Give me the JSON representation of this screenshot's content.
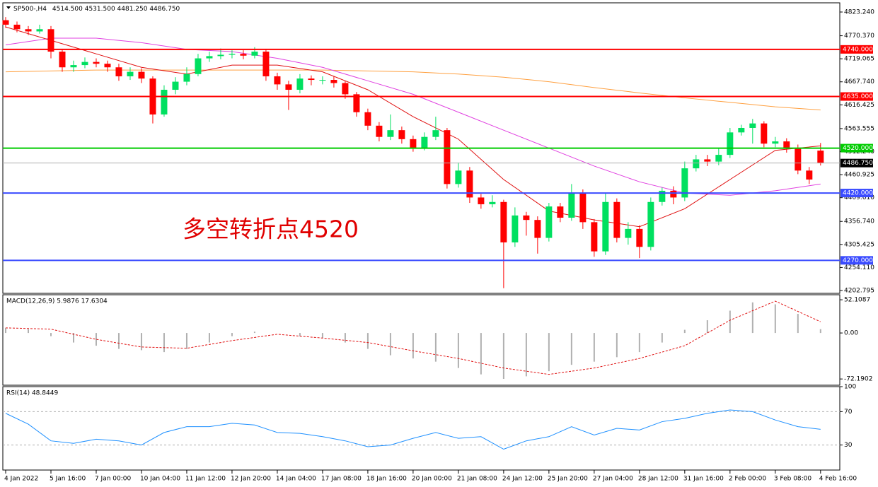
{
  "chart_data": [
    {
      "type": "candlestick",
      "title": "SP500-,H4",
      "ohlc_label": "4514.500 4531.500 4481.250 4486.750",
      "annotation": "多空转折点4520",
      "xlim": [
        -0.25,
        73.7
      ],
      "ylim": [
        4196.5,
        4843.7
      ],
      "xticks": [
        {
          "value": 0,
          "label": "4 Jan 2022"
        },
        {
          "value": 4,
          "label": "5 Jan 16:00"
        },
        {
          "value": 8,
          "label": "7 Jan 00:00"
        },
        {
          "value": 12,
          "label": "10 Jan 04:00"
        },
        {
          "value": 16,
          "label": "11 Jan 12:00"
        },
        {
          "value": 20,
          "label": "12 Jan 20:00"
        },
        {
          "value": 24,
          "label": "14 Jan 04:00"
        },
        {
          "value": 28,
          "label": "17 Jan 08:00"
        },
        {
          "value": 32,
          "label": "18 Jan 16:00"
        },
        {
          "value": 36,
          "label": "20 Jan 00:00"
        },
        {
          "value": 40,
          "label": "21 Jan 08:00"
        },
        {
          "value": 44,
          "label": "24 Jan 12:00"
        },
        {
          "value": 48,
          "label": "25 Jan 20:00"
        },
        {
          "value": 52,
          "label": "27 Jan 04:00"
        },
        {
          "value": 56,
          "label": "28 Jan 12:00"
        },
        {
          "value": 60,
          "label": "31 Jan 16:00"
        },
        {
          "value": 64,
          "label": "2 Feb 00:00"
        },
        {
          "value": 68,
          "label": "3 Feb 08:00"
        },
        {
          "value": 72,
          "label": "4 Feb 16:00"
        }
      ],
      "yticks": [
        {
          "value": 4823.24,
          "label": "4823.240"
        },
        {
          "value": 4770.37,
          "label": "4770.370"
        },
        {
          "value": 4719.065,
          "label": "4719.065"
        },
        {
          "value": 4667.74,
          "label": "4667.740"
        },
        {
          "value": 4616.425,
          "label": "4616.425"
        },
        {
          "value": 4563.555,
          "label": "4563.555"
        },
        {
          "value": 4512.24,
          "label": "4512.240"
        },
        {
          "value": 4460.925,
          "label": "4460.925"
        },
        {
          "value": 4409.61,
          "label": "4409.610"
        },
        {
          "value": 4356.74,
          "label": "4356.740"
        },
        {
          "value": 4305.425,
          "label": "4305.425"
        },
        {
          "value": 4254.11,
          "label": "4254.110"
        },
        {
          "value": 4202.795,
          "label": "4202.795"
        }
      ],
      "levels": [
        {
          "value": 4740,
          "label": "4740.000",
          "color": "#ff0000"
        },
        {
          "value": 4635,
          "label": "4635.000",
          "color": "#ff0000"
        },
        {
          "value": 4520,
          "label": "4520.000",
          "color": "#00cc00"
        },
        {
          "value": 4420,
          "label": "4420.000",
          "color": "#3a4bff"
        },
        {
          "value": 4270,
          "label": "4270.000",
          "color": "#3a4bff"
        }
      ],
      "last_price": {
        "value": 4486.75,
        "label": "4486.750"
      },
      "bull_color": "#00e060",
      "bear_color": "#ff0000",
      "open": [
        4805,
        4795,
        4785,
        4780,
        4785,
        4735,
        4700,
        4705,
        4712,
        4708,
        4700,
        4680,
        4690,
        4675,
        4595,
        4650,
        4668,
        4685,
        4720,
        4725,
        4728,
        4730,
        4726,
        4735,
        4680,
        4662,
        4650,
        4675,
        4672,
        4672,
        4665,
        4640,
        4600,
        4570,
        4545,
        4560,
        4540,
        4520,
        4545,
        4560,
        4440,
        4470,
        4410,
        4395,
        4400,
        4310,
        4370,
        4360,
        4320,
        4390,
        4365,
        4420,
        4355,
        4290,
        4400,
        4320,
        4340,
        4300,
        4400,
        4425,
        4410,
        4475,
        4495,
        4490,
        4505,
        4555,
        4565,
        4575,
        4530,
        4535,
        4520,
        4470,
        4514.5
      ],
      "high": [
        4812,
        4802,
        4792,
        4795,
        4792,
        4740,
        4715,
        4722,
        4720,
        4715,
        4708,
        4700,
        4698,
        4680,
        4660,
        4678,
        4700,
        4730,
        4735,
        4742,
        4738,
        4738,
        4745,
        4740,
        4688,
        4670,
        4685,
        4682,
        4680,
        4680,
        4670,
        4645,
        4608,
        4578,
        4595,
        4568,
        4548,
        4555,
        4590,
        4565,
        4488,
        4478,
        4418,
        4415,
        4405,
        4388,
        4378,
        4368,
        4398,
        4398,
        4440,
        4428,
        4362,
        4420,
        4408,
        4355,
        4348,
        4410,
        4432,
        4435,
        4490,
        4505,
        4505,
        4520,
        4565,
        4572,
        4585,
        4580,
        4545,
        4542,
        4528,
        4478,
        4531.5
      ],
      "low": [
        4788,
        4778,
        4772,
        4775,
        4720,
        4690,
        4690,
        4698,
        4700,
        4690,
        4670,
        4672,
        4665,
        4575,
        4590,
        4640,
        4660,
        4680,
        4712,
        4718,
        4720,
        4718,
        4720,
        4670,
        4650,
        4605,
        4642,
        4660,
        4662,
        4655,
        4630,
        4590,
        4560,
        4535,
        4538,
        4530,
        4512,
        4515,
        4538,
        4430,
        4432,
        4398,
        4385,
        4388,
        4208,
        4300,
        4325,
        4285,
        4312,
        4355,
        4358,
        4340,
        4278,
        4282,
        4310,
        4305,
        4275,
        4292,
        4392,
        4395,
        4402,
        4468,
        4480,
        4482,
        4498,
        4548,
        4530,
        4522,
        4522,
        4510,
        4462,
        4440,
        4481.25
      ],
      "close": [
        4795,
        4785,
        4780,
        4785,
        4735,
        4700,
        4705,
        4712,
        4708,
        4700,
        4680,
        4690,
        4675,
        4595,
        4650,
        4668,
        4685,
        4720,
        4725,
        4728,
        4730,
        4726,
        4735,
        4680,
        4662,
        4650,
        4675,
        4672,
        4672,
        4665,
        4640,
        4600,
        4570,
        4545,
        4560,
        4540,
        4520,
        4545,
        4560,
        4440,
        4470,
        4410,
        4395,
        4400,
        4310,
        4370,
        4360,
        4320,
        4390,
        4365,
        4420,
        4355,
        4290,
        4400,
        4320,
        4340,
        4300,
        4400,
        4425,
        4410,
        4475,
        4495,
        4490,
        4505,
        4555,
        4565,
        4575,
        4530,
        4535,
        4520,
        4470,
        4450,
        4486.75
      ],
      "lines": [
        {
          "color": "#ffa040",
          "x": [
            0,
            4,
            8,
            12,
            16,
            20,
            24,
            28,
            32,
            36,
            40,
            44,
            48,
            52,
            56,
            60,
            64,
            68,
            72
          ],
          "values": [
            4690,
            4692,
            4694,
            4694,
            4694,
            4694,
            4694,
            4694,
            4692,
            4690,
            4685,
            4678,
            4668,
            4655,
            4643,
            4632,
            4622,
            4612,
            4605
          ]
        },
        {
          "color": "#e040e0",
          "x": [
            0,
            4,
            8,
            12,
            16,
            20,
            24,
            28,
            32,
            36,
            40,
            44,
            48,
            52,
            56,
            60,
            64,
            68,
            72
          ],
          "values": [
            4750,
            4765,
            4765,
            4755,
            4740,
            4735,
            4720,
            4700,
            4670,
            4640,
            4600,
            4560,
            4520,
            4480,
            4445,
            4420,
            4415,
            4425,
            4440
          ]
        },
        {
          "color": "#e01010",
          "x": [
            0,
            4,
            8,
            12,
            16,
            20,
            24,
            28,
            32,
            36,
            40,
            44,
            48,
            52,
            56,
            60,
            64,
            68,
            72
          ],
          "values": [
            4790,
            4760,
            4730,
            4700,
            4685,
            4705,
            4705,
            4690,
            4650,
            4590,
            4540,
            4450,
            4380,
            4360,
            4345,
            4385,
            4450,
            4515,
            4525
          ]
        }
      ]
    },
    {
      "type": "macd",
      "title": "MACD(12,26,9) 5.9876 17.6304",
      "xlim": [
        -0.25,
        73.7
      ],
      "ylim": [
        -82,
        60
      ],
      "yticks": [
        52.1087,
        {
          "value": 0,
          "label": "0.00"
        },
        -72.1902
      ],
      "hist_color": "#b0b0b0",
      "signal_color": "#e01010",
      "x": [
        0,
        2,
        4,
        6,
        8,
        10,
        12,
        14,
        16,
        18,
        20,
        22,
        24,
        26,
        28,
        30,
        32,
        34,
        36,
        38,
        40,
        42,
        44,
        46,
        48,
        50,
        52,
        54,
        56,
        58,
        60,
        62,
        64,
        66,
        68,
        70,
        72
      ],
      "histogram": [
        8,
        6,
        -5,
        -15,
        -20,
        -25,
        -27,
        -30,
        -25,
        -15,
        -5,
        2,
        0,
        -5,
        -8,
        -15,
        -25,
        -35,
        -40,
        -45,
        -55,
        -65,
        -72,
        -68,
        -60,
        -50,
        -45,
        -38,
        -30,
        -15,
        5,
        20,
        35,
        48,
        45,
        30,
        5.9876
      ],
      "signal_x": [
        0,
        4,
        8,
        12,
        16,
        20,
        24,
        28,
        32,
        36,
        40,
        44,
        48,
        52,
        56,
        60,
        64,
        68,
        72
      ],
      "signal": [
        8,
        6,
        -10,
        -22,
        -24,
        -12,
        -2,
        -8,
        -15,
        -28,
        -40,
        -55,
        -65,
        -55,
        -40,
        -20,
        20,
        50,
        17.6304
      ]
    },
    {
      "type": "rsi",
      "title": "RSI(14) 48.8449",
      "xlim": [
        -0.25,
        73.7
      ],
      "ylim": [
        0,
        100
      ],
      "yticks": [
        100,
        70,
        30
      ],
      "levels": [
        70,
        30
      ],
      "color": "#1e90ff",
      "x": [
        0,
        2,
        4,
        6,
        8,
        10,
        12,
        14,
        16,
        18,
        20,
        22,
        24,
        26,
        28,
        30,
        32,
        34,
        36,
        38,
        40,
        42,
        44,
        46,
        48,
        50,
        52,
        54,
        56,
        58,
        60,
        62,
        64,
        66,
        68,
        70,
        72
      ],
      "values": [
        68,
        55,
        35,
        32,
        37,
        35,
        30,
        45,
        52,
        52,
        56,
        54,
        45,
        44,
        40,
        35,
        28,
        30,
        38,
        45,
        38,
        40,
        25,
        35,
        40,
        52,
        42,
        50,
        48,
        58,
        62,
        68,
        72,
        70,
        60,
        52,
        48.8449
      ]
    }
  ]
}
